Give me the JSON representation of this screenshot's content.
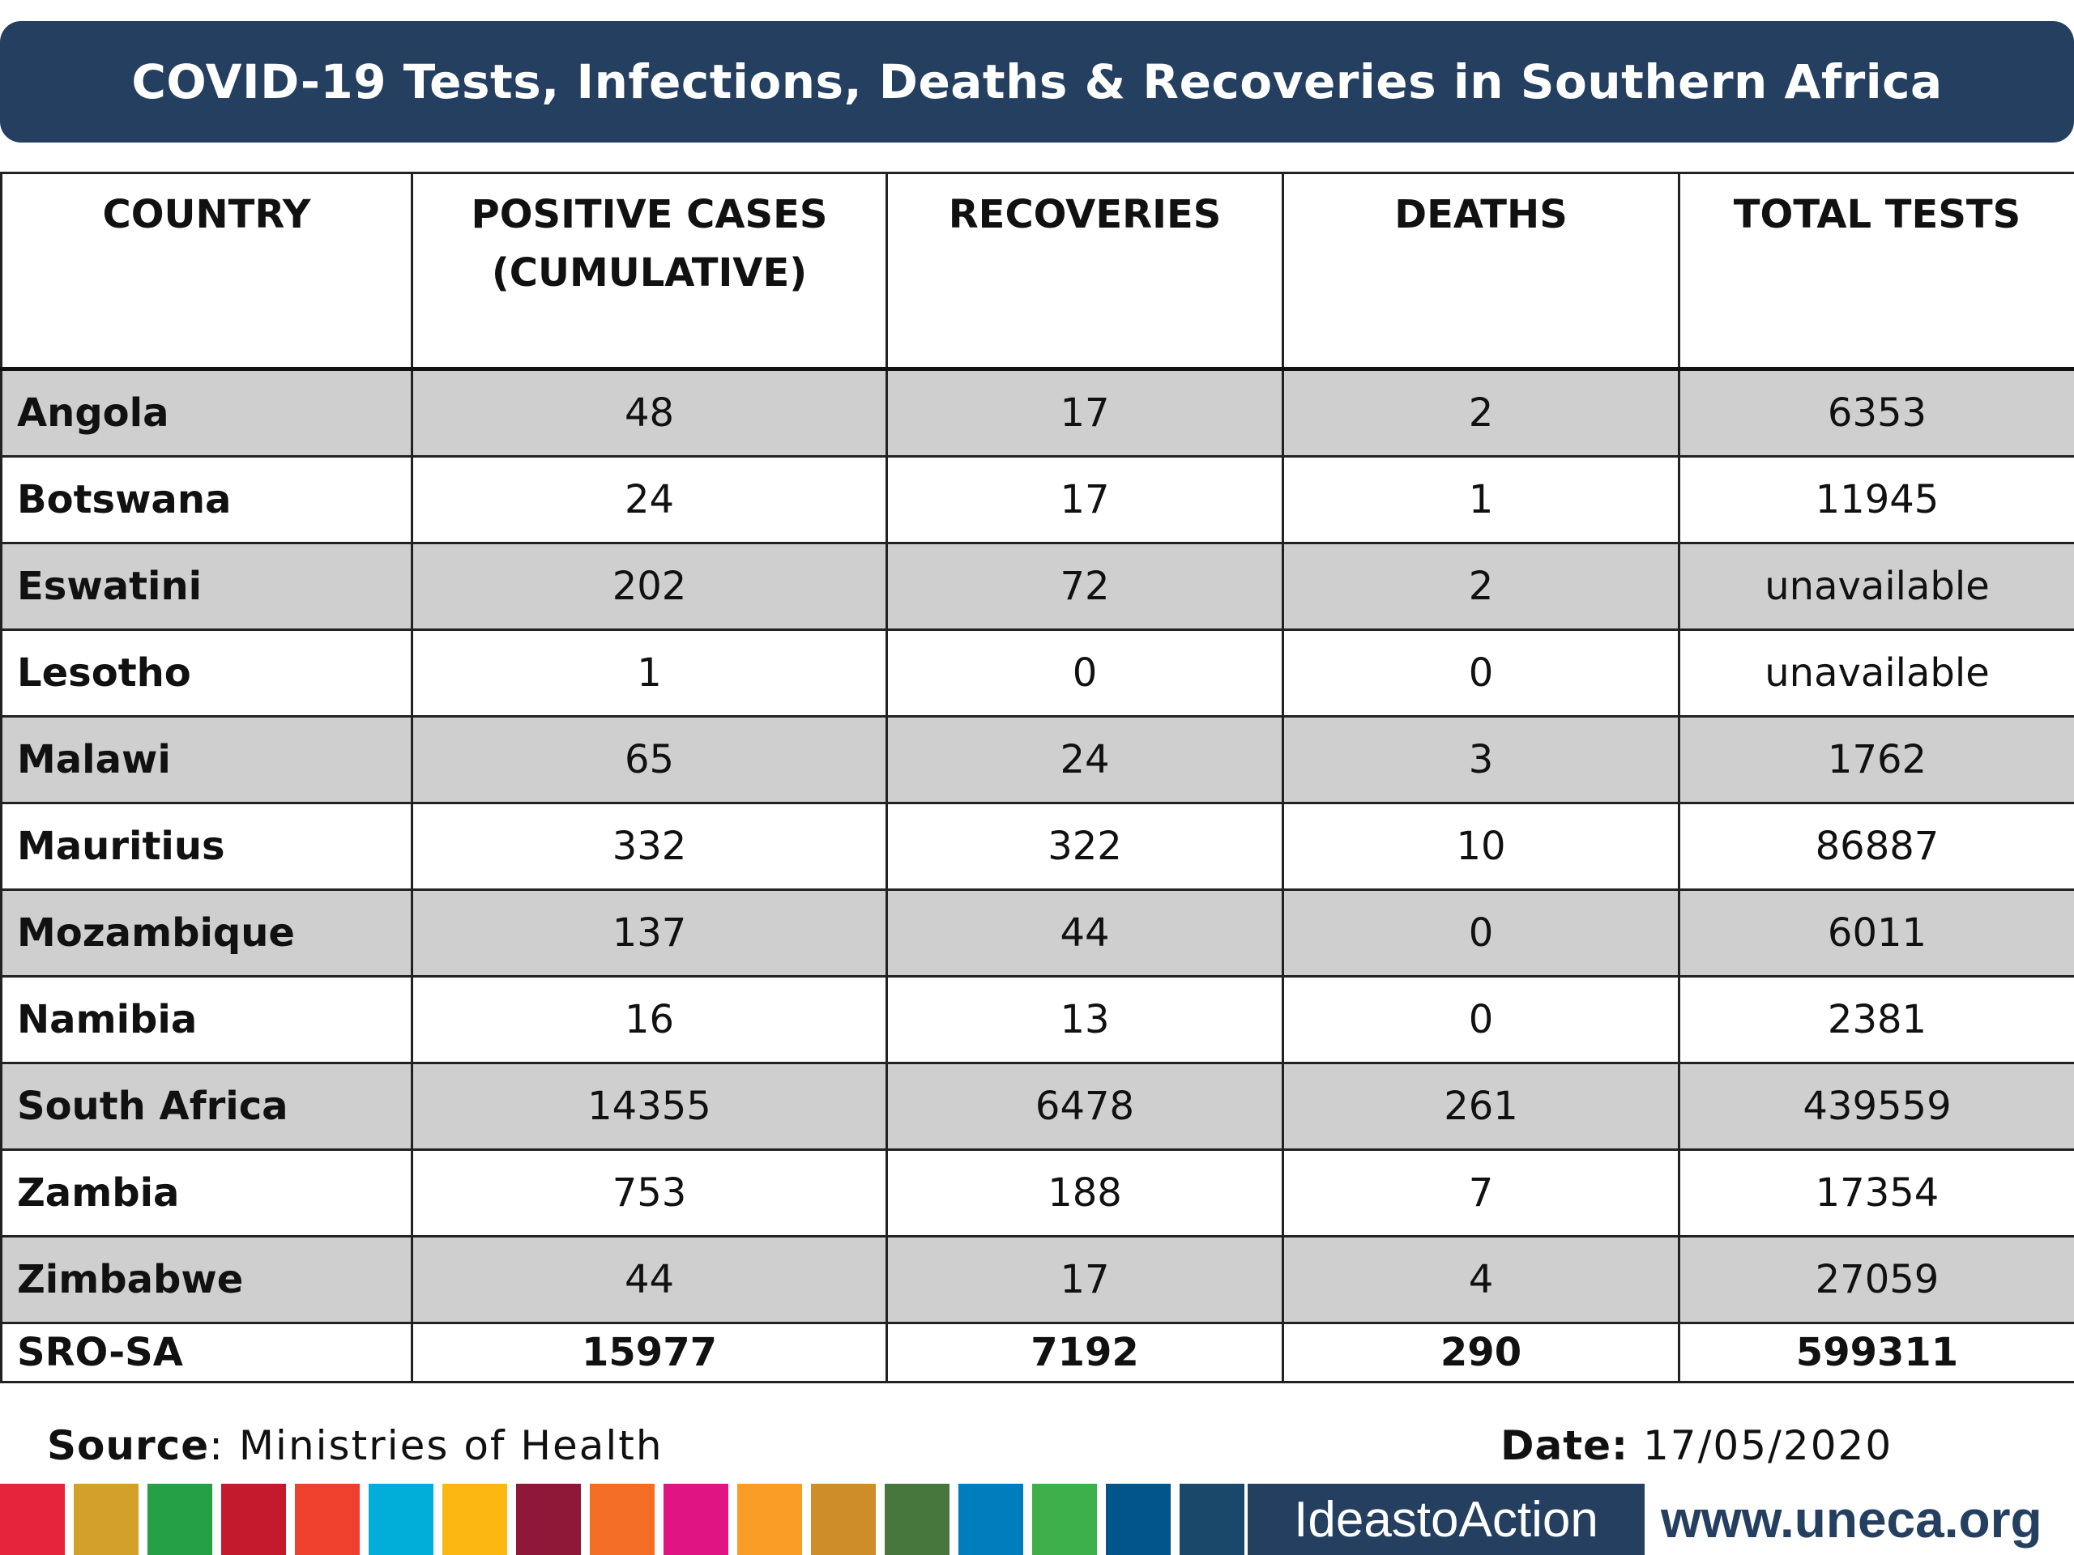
{
  "title": "COVID-19 Tests, Infections, Deaths & Recoveries in Southern Africa",
  "headers": {
    "country": "COUNTRY",
    "positive_line1": "POSITIVE CASES",
    "positive_line2": "(CUMULATIVE)",
    "recoveries": "RECOVERIES",
    "deaths": "DEATHS",
    "total_tests": "TOTAL TESTS"
  },
  "rows": [
    {
      "country": "Angola",
      "positive": "48",
      "recoveries": "17",
      "deaths": "2",
      "tests": "6353"
    },
    {
      "country": "Botswana",
      "positive": "24",
      "recoveries": "17",
      "deaths": "1",
      "tests": "11945"
    },
    {
      "country": "Eswatini",
      "positive": "202",
      "recoveries": "72",
      "deaths": "2",
      "tests": "unavailable"
    },
    {
      "country": "Lesotho",
      "positive": "1",
      "recoveries": "0",
      "deaths": "0",
      "tests": "unavailable"
    },
    {
      "country": "Malawi",
      "positive": "65",
      "recoveries": "24",
      "deaths": "3",
      "tests": "1762"
    },
    {
      "country": "Mauritius",
      "positive": "332",
      "recoveries": "322",
      "deaths": "10",
      "tests": "86887"
    },
    {
      "country": "Mozambique",
      "positive": "137",
      "recoveries": "44",
      "deaths": "0",
      "tests": "6011"
    },
    {
      "country": "Namibia",
      "positive": "16",
      "recoveries": "13",
      "deaths": "0",
      "tests": "2381"
    },
    {
      "country": "South Africa",
      "positive": "14355",
      "recoveries": "6478",
      "deaths": "261",
      "tests": "439559"
    },
    {
      "country": "Zambia",
      "positive": "753",
      "recoveries": "188",
      "deaths": "7",
      "tests": "17354"
    },
    {
      "country": "Zimbabwe",
      "positive": "44",
      "recoveries": "17",
      "deaths": "4",
      "tests": "27059"
    }
  ],
  "total": {
    "country": "SRO-SA",
    "positive": "15977",
    "recoveries": "7192",
    "deaths": "290",
    "tests": "599311"
  },
  "footer": {
    "source_label": "Source",
    "source_value": ": Ministries of Health",
    "date_label": "Date:",
    "date_value": " 17/05/2020",
    "ideas": "IdeastoAction",
    "url": "www.uneca.org"
  },
  "stripe_colors": [
    "#e5243b",
    "#d3a029",
    "#26a046",
    "#c5192d",
    "#ef402d",
    "#00aed9",
    "#fdb713",
    "#8f1838",
    "#f36d25",
    "#e11484",
    "#f99d26",
    "#cf8d2a",
    "#48773e",
    "#007dbc",
    "#3eb049",
    "#02558b",
    "#19486a"
  ]
}
